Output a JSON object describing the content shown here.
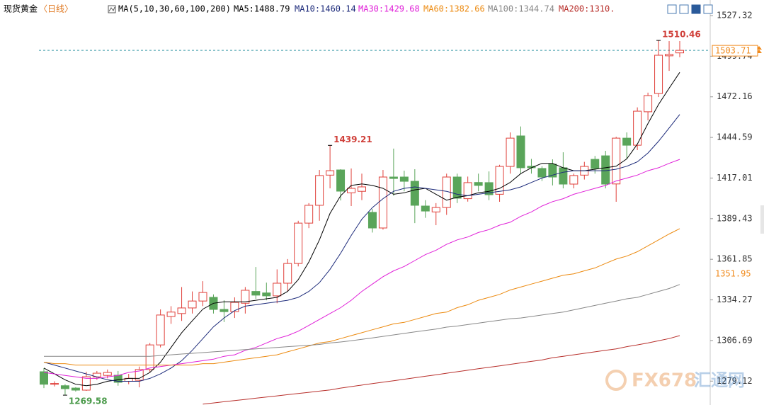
{
  "chart_data": {
    "type": "candlestick",
    "title": "现货黄金",
    "period": "〈日线〉",
    "indicator": "MA(5,10,30,60,100,200)",
    "ylim": [
      1262.9,
      1535.5
    ],
    "yticks": [
      1527.32,
      1499.74,
      1472.16,
      1444.59,
      1417.01,
      1389.43,
      1361.85,
      1334.27,
      1306.69,
      1279.12
    ],
    "up_color": "#e0403a",
    "down_color": "#5aa55a",
    "open": [
      1285.5,
      1277,
      1276,
      1274.4,
      1273,
      1282,
      1283,
      1283.1,
      1279,
      1279.7,
      1287,
      1303.7,
      1323,
      1325,
      1328.8,
      1333.5,
      1336,
      1327.8,
      1326.3,
      1332,
      1340,
      1339,
      1337,
      1345.6,
      1359,
      1386.4,
      1398.5,
      1419,
      1422.5,
      1407,
      1408,
      1393.7,
      1383.1,
      1417.7,
      1417.7,
      1414.8,
      1398,
      1394,
      1397,
      1417.7,
      1403,
      1414,
      1413.9,
      1406,
      1424.9,
      1445.6,
      1425,
      1423.5,
      1426.4,
      1424,
      1412.9,
      1419,
      1429.7,
      1432.1,
      1413,
      1444.1,
      1439.3,
      1462,
      1474.4,
      1500,
      1502
    ],
    "high": [
      1287.9,
      1279,
      1277,
      1275,
      1285.5,
      1286,
      1287,
      1286,
      1284,
      1289,
      1305,
      1327.8,
      1330,
      1343,
      1340,
      1347,
      1338,
      1334,
      1336,
      1343,
      1356.6,
      1346,
      1355,
      1362,
      1388,
      1400,
      1422.5,
      1439.21,
      1423,
      1423.5,
      1420,
      1396,
      1422.5,
      1437,
      1422,
      1423,
      1402,
      1400,
      1420,
      1420,
      1418,
      1420,
      1421.5,
      1426,
      1448,
      1452,
      1430,
      1425,
      1429.7,
      1434.5,
      1420,
      1428,
      1432,
      1435.5,
      1445,
      1448,
      1465,
      1475,
      1510.46,
      1510,
      1510
    ],
    "low": [
      1274.4,
      1275.5,
      1269.58,
      1272,
      1272.5,
      1280,
      1281,
      1276,
      1277,
      1274.9,
      1285,
      1302,
      1318,
      1320,
      1325,
      1330,
      1325,
      1319.2,
      1322,
      1325,
      1335,
      1334,
      1332,
      1340,
      1357,
      1383,
      1388,
      1410,
      1401.8,
      1398,
      1402,
      1380,
      1382,
      1405,
      1408,
      1386.4,
      1390,
      1385,
      1392,
      1400,
      1401,
      1408,
      1402,
      1400.9,
      1420,
      1420,
      1420,
      1415,
      1412,
      1410,
      1410,
      1416,
      1420,
      1410,
      1400.9,
      1430,
      1436,
      1456.2,
      1472,
      1489.8,
      1499
    ],
    "close": [
      1277,
      1277.5,
      1274,
      1273,
      1282.1,
      1284.5,
      1285,
      1278.3,
      1281,
      1287,
      1303.7,
      1324,
      1326,
      1328.8,
      1333.5,
      1339.3,
      1327.8,
      1326.3,
      1332.6,
      1340.8,
      1337.5,
      1337,
      1345.6,
      1359,
      1386.4,
      1398.5,
      1418.7,
      1422,
      1408.1,
      1410,
      1411,
      1383.1,
      1417.7,
      1416.7,
      1414.8,
      1398.5,
      1394.6,
      1397,
      1417.7,
      1403.3,
      1413.9,
      1412,
      1405.7,
      1424.9,
      1444.1,
      1424,
      1424,
      1417.7,
      1417.7,
      1412.9,
      1418.7,
      1424.9,
      1423.5,
      1412.9,
      1444.1,
      1439.3,
      1462.4,
      1473,
      1500.4,
      1501,
      1503.71
    ],
    "marked_prices": [
      1510.46,
      1439.21,
      1269.58
    ],
    "last_price": 1503.71,
    "last_price_color": "#f08a1c",
    "marker_price": 1351.95,
    "series": [
      {
        "name": "MA5:1488.79",
        "color": "#000000",
        "values": [
          1288,
          1284,
          1280,
          1277,
          1276,
          1277,
          1279,
          1280,
          1281,
          1281,
          1285,
          1292,
          1302,
          1312,
          1320,
          1328,
          1332,
          1333,
          1333,
          1333,
          1334,
          1335,
          1336,
          1340,
          1348,
          1360,
          1375,
          1393,
          1405,
          1412,
          1413,
          1412,
          1410,
          1406,
          1407,
          1409,
          1410,
          1406,
          1402,
          1404,
          1405,
          1407,
          1408,
          1410,
          1414,
          1420,
          1424,
          1427,
          1427,
          1424,
          1422,
          1422,
          1423,
          1424,
          1425,
          1430,
          1440,
          1454,
          1467,
          1478,
          1488.79
        ]
      },
      {
        "name": "MA10:1460.14",
        "color": "#1c2a7a",
        "values": [
          1292,
          1290,
          1288,
          1286,
          1284,
          1282,
          1280,
          1279,
          1279,
          1279,
          1281,
          1284,
          1288,
          1293,
          1300,
          1308,
          1316,
          1322,
          1327,
          1330,
          1331,
          1332,
          1333,
          1334,
          1336,
          1340,
          1346,
          1355,
          1366,
          1378,
          1389,
          1397,
          1403,
          1408,
          1410,
          1411,
          1410,
          1409,
          1408,
          1406,
          1405,
          1406,
          1407,
          1408,
          1409,
          1411,
          1414,
          1417,
          1419,
          1421,
          1422,
          1422,
          1422,
          1422,
          1423,
          1425,
          1428,
          1434,
          1442,
          1451,
          1460.14
        ]
      },
      {
        "name": "MA30:1429.68",
        "color": "#e020d8",
        "values": [
          1285,
          1284,
          1283,
          1282,
          1281,
          1281,
          1282,
          1283,
          1285,
          1286,
          1288,
          1289,
          1290,
          1291,
          1292,
          1293,
          1294,
          1296,
          1297,
          1300,
          1302,
          1305,
          1308,
          1310,
          1313,
          1317,
          1321,
          1325,
          1329,
          1334,
          1340,
          1345,
          1350,
          1354,
          1357,
          1361,
          1365,
          1368,
          1372,
          1375,
          1377,
          1380,
          1382,
          1385,
          1387,
          1391,
          1394,
          1398,
          1401,
          1403,
          1406,
          1408,
          1410,
          1412,
          1415,
          1417,
          1419,
          1422,
          1424,
          1427,
          1429.68
        ]
      },
      {
        "name": "MA60:1382.66",
        "color": "#ec8a10",
        "values": [
          1292,
          1291,
          1291,
          1290,
          1290,
          1290,
          1290,
          1290,
          1290,
          1290,
          1290,
          1290,
          1290,
          1290,
          1290,
          1291,
          1291,
          1292,
          1293,
          1294,
          1295,
          1296,
          1297,
          1299,
          1301,
          1303,
          1305,
          1306,
          1308,
          1310,
          1312,
          1314,
          1316,
          1318,
          1319,
          1321,
          1323,
          1325,
          1326,
          1329,
          1331,
          1334,
          1336,
          1338,
          1341,
          1343,
          1345,
          1347,
          1349,
          1351,
          1352,
          1354,
          1356,
          1359,
          1362,
          1364,
          1367,
          1371,
          1375,
          1379,
          1382.66
        ]
      },
      {
        "name": "MA100:1344.74",
        "color": "#888888",
        "values": [
          1296,
          1296,
          1296,
          1296,
          1296,
          1296,
          1296,
          1296,
          1296,
          1296,
          1296,
          1296.5,
          1297,
          1297.5,
          1298,
          1298.5,
          1299,
          1299.5,
          1300,
          1300.5,
          1301,
          1301.5,
          1302,
          1302.5,
          1303,
          1303.5,
          1304,
          1305,
          1305.7,
          1306.5,
          1307.5,
          1308.5,
          1309.5,
          1310.5,
          1311.5,
          1312.5,
          1313.5,
          1314.5,
          1315.8,
          1316.5,
          1317.5,
          1318.5,
          1319.5,
          1320.5,
          1321.5,
          1322,
          1323,
          1324,
          1325,
          1326,
          1327.5,
          1329,
          1330.5,
          1332,
          1333.5,
          1335,
          1336,
          1338,
          1340,
          1342,
          1344.74
        ]
      },
      {
        "name": "MA200:1310.",
        "color": "#b8302c",
        "values": [
          null,
          null,
          null,
          null,
          null,
          null,
          null,
          null,
          null,
          null,
          null,
          null,
          null,
          null,
          null,
          1263.5,
          1264.3,
          1265.1,
          1265.9,
          1266.7,
          1267.5,
          1268.3,
          1269.1,
          1269.9,
          1270.7,
          1271.5,
          1272.3,
          1273.1,
          1274.4,
          1275.4,
          1276.4,
          1277.4,
          1278.4,
          1279.4,
          1280.4,
          1281.4,
          1282.4,
          1283.4,
          1284.5,
          1285.5,
          1286.5,
          1287.5,
          1288.5,
          1289.5,
          1290.5,
          1291.5,
          1292.5,
          1293.5,
          1295,
          1296,
          1297,
          1298,
          1299,
          1300,
          1301,
          1302.5,
          1303.7,
          1305,
          1306.5,
          1308,
          1310
        ]
      }
    ],
    "watermark": [
      "FX678",
      "汇通网"
    ]
  }
}
